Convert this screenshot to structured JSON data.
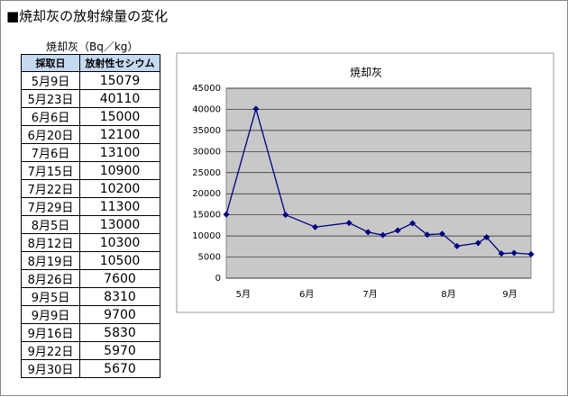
{
  "title": "■焼却灰の放射線量の変化",
  "table": {
    "caption": "焼却灰（Bq／kg）",
    "header": [
      "採取日",
      "放射性セシウム"
    ],
    "rows": [
      [
        "5月9日",
        15079
      ],
      [
        "5月23日",
        40110
      ],
      [
        "6月6日",
        15000
      ],
      [
        "6月20日",
        12100
      ],
      [
        "7月6日",
        13100
      ],
      [
        "7月15日",
        10900
      ],
      [
        "7月22日",
        10200
      ],
      [
        "7月29日",
        11300
      ],
      [
        "8月5日",
        13000
      ],
      [
        "8月12日",
        10300
      ],
      [
        "8月19日",
        10500
      ],
      [
        "8月26日",
        7600
      ],
      [
        "9月5日",
        8310
      ],
      [
        "9月9日",
        9700
      ],
      [
        "9月16日",
        5830
      ],
      [
        "9月22日",
        5970
      ],
      [
        "9月30日",
        5670
      ]
    ]
  },
  "chart_data": {
    "type": "line",
    "title": "焼却灰",
    "color": "#000080",
    "values": [
      15079,
      40110,
      15000,
      12100,
      13100,
      10900,
      10200,
      11300,
      13000,
      10300,
      10500,
      7600,
      8310,
      9700,
      5830,
      5970,
      5670
    ],
    "xlim": [
      129,
      273
    ],
    "xticks": [
      {
        "value": 137,
        "label": "5月"
      },
      {
        "value": 167,
        "label": "6月"
      },
      {
        "value": 197,
        "label": "7月"
      },
      {
        "value": 234,
        "label": "8月"
      },
      {
        "value": 263,
        "label": "9月"
      }
    ],
    "ylim": [
      0,
      45000
    ],
    "yticks": [
      0,
      5000,
      10000,
      15000,
      20000,
      25000,
      30000,
      35000,
      40000,
      45000
    ],
    "grid": true
  }
}
